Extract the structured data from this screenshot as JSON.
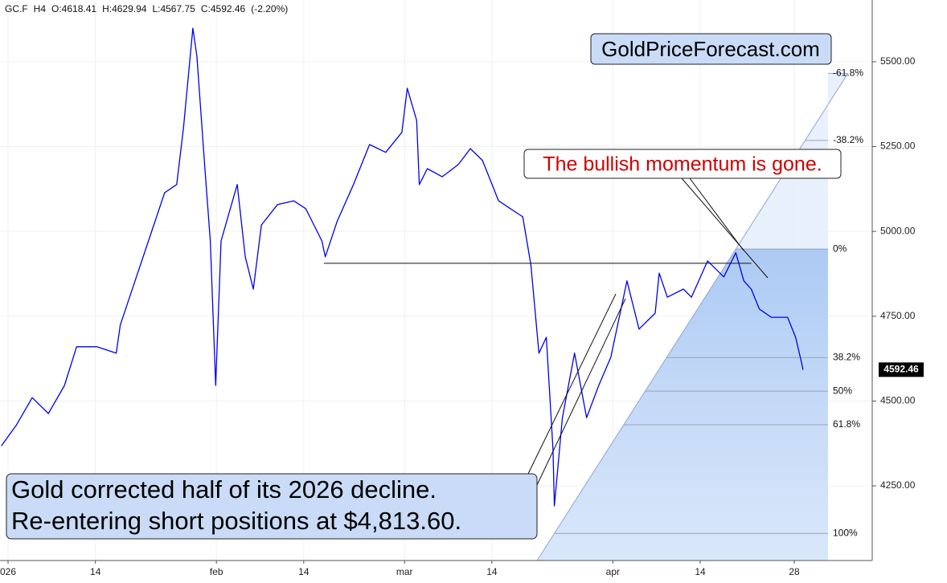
{
  "chart_data": {
    "type": "line",
    "header": [
      "GC.F",
      "H4",
      "O:4618.41",
      "H:4629.94",
      "L:4567.75",
      "C:4592.46",
      "(-2.20%)"
    ],
    "x": [
      0.0,
      2.2,
      4.6,
      7.0,
      9.4,
      11.2,
      14.2,
      17.1,
      17.7,
      19.9,
      21.9,
      24.3,
      26.1,
      27.1,
      28.5,
      29.1,
      30.3,
      31.1,
      31.9,
      32.7,
      35.1,
      36.3,
      37.5,
      38.7,
      41.1,
      43.5,
      45.3,
      47.7,
      48.2,
      50.0,
      52.4,
      54.8,
      57.2,
      59.6,
      60.4,
      61.8,
      62.2,
      63.4,
      65.6,
      68.0,
      69.8,
      71.6,
      74.0,
      77.6,
      78.8,
      80.0,
      81.1,
      82.1,
      82.3,
      83.5,
      85.3,
      87.1,
      88.9,
      90.7,
      93.1,
      94.9,
      97.3,
      97.9,
      99.1,
      101.5,
      102.7,
      105.1,
      107.5,
      109.3,
      110.5,
      111.6,
      112.8,
      114.6,
      117.0,
      118.2,
      119.1,
      119.3
    ],
    "values": [
      4368,
      4428,
      4510,
      4463,
      4546,
      4660,
      4660,
      4641,
      4724,
      4854,
      4972,
      5114,
      5138,
      5304,
      5599,
      5517,
      5185,
      4972,
      4546,
      4972,
      5138,
      4925,
      4830,
      5019,
      5079,
      5090,
      5067,
      4972,
      4925,
      5031,
      5138,
      5256,
      5233,
      5292,
      5422,
      5327,
      5138,
      5185,
      5161,
      5197,
      5244,
      5209,
      5090,
      5043,
      4901,
      4641,
      4688,
      4357,
      4191,
      4451,
      4641,
      4451,
      4546,
      4629,
      4854,
      4712,
      4759,
      4877,
      4806,
      4830,
      4806,
      4913,
      4866,
      4937,
      4854,
      4830,
      4771,
      4747,
      4747,
      4688,
      4612,
      4592
    ],
    "color": "#0000ee",
    "xlim": [
      -0.2,
      129.6
    ],
    "xticks": [
      {
        "value": 1,
        "label": "026"
      },
      {
        "value": 14,
        "label": "14"
      },
      {
        "value": 32,
        "label": "feb"
      },
      {
        "value": 45,
        "label": "14"
      },
      {
        "value": 60,
        "label": "mar"
      },
      {
        "value": 73,
        "label": "14"
      },
      {
        "value": 91,
        "label": "apr"
      },
      {
        "value": 104,
        "label": "14"
      },
      {
        "value": 118,
        "label": "28"
      }
    ],
    "ylim": [
      4030,
      5682
    ],
    "yticks": [
      {
        "value": 4250,
        "label": "4250.00"
      },
      {
        "value": 4500,
        "label": "4500.00"
      },
      {
        "value": 4750,
        "label": "4750.00"
      },
      {
        "value": 5000,
        "label": "5000.00"
      },
      {
        "value": 5250,
        "label": "5250.00"
      },
      {
        "value": 5500,
        "label": "5500.00"
      }
    ],
    "grid": true,
    "last_price": 4592.46,
    "fib": {
      "x": [
        82.3,
        109.3
      ],
      "low": 4110,
      "high": 4948,
      "levels": [
        {
          "value": -61.8,
          "label": "-61.8%"
        },
        {
          "value": -38.2,
          "label": "-38.2%"
        },
        {
          "value": 0,
          "label": "0%"
        },
        {
          "value": 38.2,
          "label": "38.2%"
        },
        {
          "value": 50,
          "label": "50%"
        },
        {
          "value": 61.8,
          "label": "61.8%"
        },
        {
          "value": 100,
          "label": "100%"
        }
      ]
    },
    "hline": {
      "x": [
        48.0,
        111.6
      ],
      "y": 4906
    },
    "annotations": {
      "brand": "GoldPriceForecast.com",
      "warning": "The bullish momentum is gone.",
      "note": [
        "Gold corrected half of its 2026 decline.",
        "Re-entering short positions at $4,813.60."
      ]
    }
  }
}
